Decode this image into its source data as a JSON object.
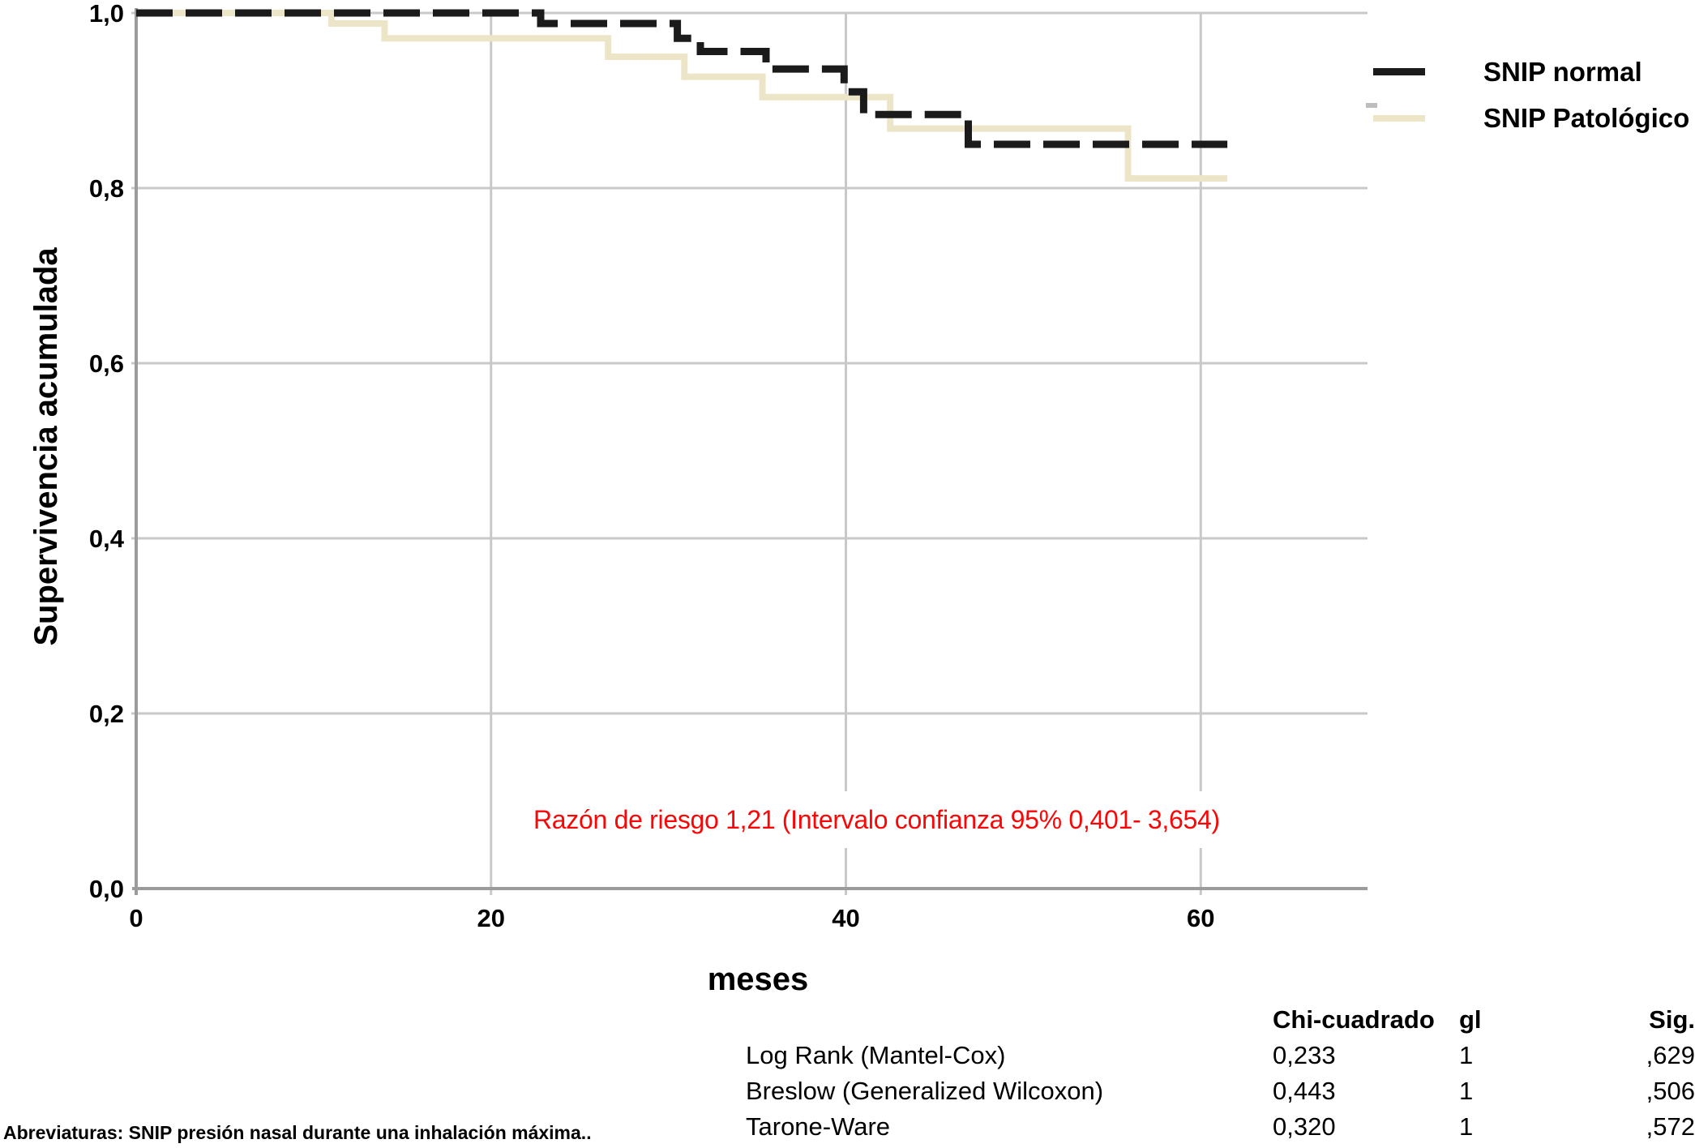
{
  "chart_data": {
    "type": "line",
    "subtype": "kaplan_meier_step_survival",
    "title": "",
    "xlabel": "meses",
    "ylabel": "Supervivencia acumulada",
    "xlim": [
      0,
      69.4
    ],
    "ylim": [
      0,
      1.0
    ],
    "grid": true,
    "grid_color": "#c9c9c9",
    "axis_color": "#9b9b9b",
    "xticks": [
      {
        "v": 0,
        "label": "0"
      },
      {
        "v": 20,
        "label": "20"
      },
      {
        "v": 40,
        "label": "40"
      },
      {
        "v": 60,
        "label": "60"
      }
    ],
    "yticks": [
      {
        "v": 0.0,
        "label": "0,0"
      },
      {
        "v": 0.2,
        "label": "0,2"
      },
      {
        "v": 0.4,
        "label": "0,4"
      },
      {
        "v": 0.6,
        "label": "0,6"
      },
      {
        "v": 0.8,
        "label": "0,8"
      },
      {
        "v": 1.0,
        "label": "1,0"
      }
    ],
    "legend": {
      "position": "top-right",
      "entries": [
        {
          "label": "SNIP normal",
          "color": "#1b1b1b",
          "style": "dashed"
        },
        {
          "label": "SNIP Patológico",
          "color": "#ede5c8",
          "style": "solid"
        }
      ]
    },
    "series": [
      {
        "name": "SNIP normal",
        "color": "#1b1b1b",
        "stroke_width": 9,
        "dash": "45 16",
        "steps_months_survival": [
          [
            0,
            1.0
          ],
          [
            22.8,
            0.988
          ],
          [
            30.5,
            0.971
          ],
          [
            31.8,
            0.956
          ],
          [
            35.5,
            0.936
          ],
          [
            39.9,
            0.91
          ],
          [
            41.0,
            0.884
          ],
          [
            46.9,
            0.85
          ],
          [
            61.5,
            0.85
          ]
        ]
      },
      {
        "name": "SNIP Patológico",
        "color": "#ede5c8",
        "stroke_width": 8,
        "dash": "",
        "steps_months_survival": [
          [
            0,
            1.0
          ],
          [
            11.0,
            0.988
          ],
          [
            14.0,
            0.971
          ],
          [
            26.6,
            0.95
          ],
          [
            30.9,
            0.927
          ],
          [
            35.3,
            0.904
          ],
          [
            42.5,
            0.868
          ],
          [
            55.9,
            0.811
          ],
          [
            61.5,
            0.811
          ]
        ]
      }
    ],
    "annotation": {
      "text": "Razón de riesgo 1,21 (Intervalo confianza 95% 0,401- 3,654)",
      "color": "#fa0606"
    }
  },
  "stats_table": {
    "headers": {
      "test": "",
      "chi": "Chi-cuadrado",
      "gl": "gl",
      "sig": "Sig."
    },
    "rows": [
      {
        "test": "Log Rank (Mantel-Cox)",
        "chi": "0,233",
        "gl": "1",
        "sig": ",629"
      },
      {
        "test": "Breslow (Generalized Wilcoxon)",
        "chi": "0,443",
        "gl": "1",
        "sig": ",506"
      },
      {
        "test": "Tarone-Ware",
        "chi": "0,320",
        "gl": "1",
        "sig": ",572"
      }
    ]
  },
  "footnote": "Abreviaturas: SNIP presión nasal durante una inhalación máxima.."
}
